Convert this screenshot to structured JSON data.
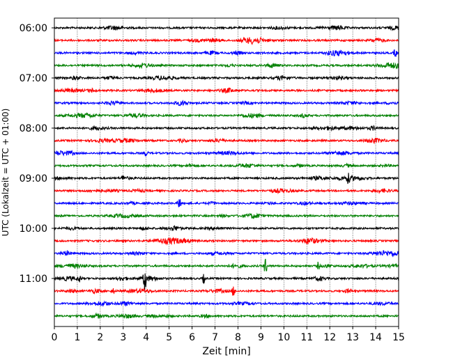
{
  "chart_data": {
    "type": "line",
    "title": "",
    "xlabel": "Zeit  [min]",
    "ylabel": "UTC (Lokalzeit = UTC + 01:00)",
    "xlim": [
      0,
      15
    ],
    "x_ticks": [
      "0",
      "1",
      "2",
      "3",
      "4",
      "5",
      "6",
      "7",
      "8",
      "9",
      "10",
      "11",
      "12",
      "13",
      "14",
      "15"
    ],
    "y_start_minutes": 360,
    "y_step_minutes": 15,
    "y_tick_labels": [
      "06:00",
      "07:00",
      "08:00",
      "09:00",
      "10:00",
      "11:00"
    ],
    "grid": "vertical dotted",
    "colors": [
      "#000000",
      "#ff0000",
      "#0000ff",
      "#008000"
    ],
    "trace_count": 24,
    "events": [
      {
        "trace_time": "09:00",
        "minute": 3.0,
        "amplitude": 4
      },
      {
        "trace_time": "09:00",
        "minute": 12.8,
        "amplitude": 5
      },
      {
        "trace_time": "09:30",
        "minute": 5.45,
        "amplitude": 11
      },
      {
        "trace_time": "10:45",
        "minute": 9.2,
        "amplitude": 13
      },
      {
        "trace_time": "10:45",
        "minute": 11.5,
        "amplitude": 5
      },
      {
        "trace_time": "11:00",
        "minute": 1.1,
        "amplitude": 5
      },
      {
        "trace_time": "11:00",
        "minute": 3.95,
        "amplitude": 17
      },
      {
        "trace_time": "11:00",
        "minute": 6.5,
        "amplitude": 6
      },
      {
        "trace_time": "11:15",
        "minute": 7.8,
        "amplitude": 8
      },
      {
        "trace_time": "11:15",
        "minute": 2.55,
        "amplitude": 4
      },
      {
        "trace_time": "06:30",
        "minute": 14.85,
        "amplitude": 6
      },
      {
        "trace_time": "08:30",
        "minute": 4.0,
        "amplitude": 5
      }
    ]
  }
}
